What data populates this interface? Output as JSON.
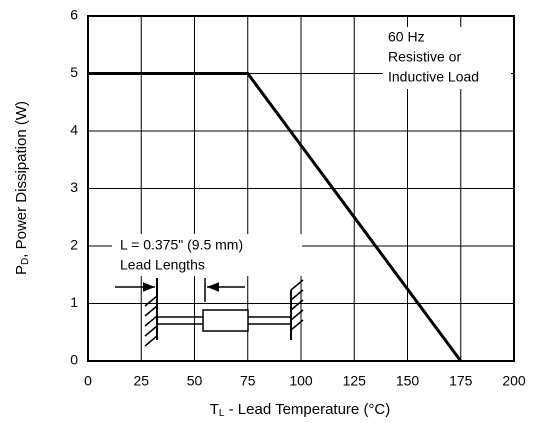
{
  "chart_data": {
    "type": "line",
    "xlabel": [
      "T",
      "L",
      " - Lead Temperature (°C)"
    ],
    "ylabel": [
      "P",
      "D",
      ", Power Dissipation (W)"
    ],
    "x": [
      0,
      75,
      175
    ],
    "series": [
      {
        "color": "#000000",
        "values": [
          5,
          5,
          0
        ]
      }
    ],
    "xlim": [
      0,
      200
    ],
    "xticks": [
      0,
      25,
      50,
      75,
      100,
      125,
      150,
      175,
      200
    ],
    "ylim": [
      0,
      6
    ],
    "yticks": [
      0,
      1,
      2,
      3,
      4,
      5,
      6
    ],
    "grid": true,
    "annotations": [
      [
        "60 Hz",
        "Resistive or",
        "Inductive Load"
      ],
      [
        "L = 0.375\" (9.5 mm)",
        "Lead Lengths"
      ]
    ]
  }
}
